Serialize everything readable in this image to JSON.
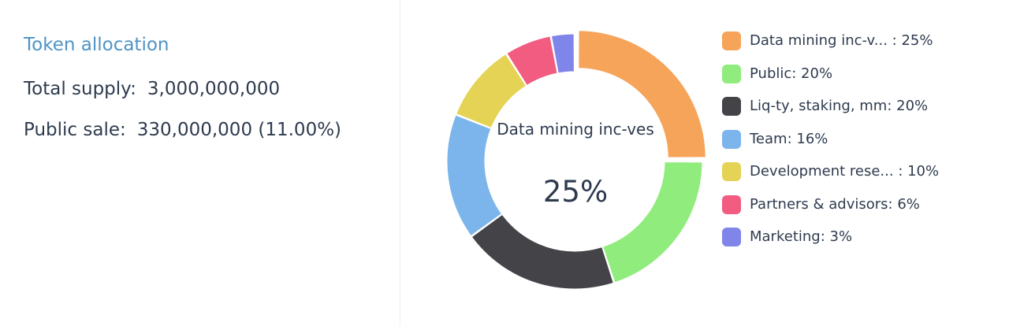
{
  "panel": {
    "title": "Token allocation",
    "total_supply_label": "Total supply:",
    "total_supply_value": "3,000,000,000",
    "public_sale_label": "Public sale:",
    "public_sale_value": "330,000,000 (11.00%)"
  },
  "chart_center": {
    "label": "Data mining inc-ves",
    "value": "25%"
  },
  "chart_data": {
    "type": "pie",
    "variant": "doughnut",
    "unit": "%",
    "highlighted_index": 0,
    "slices": [
      {
        "name": "Data mining inc-ves",
        "value": 25,
        "legend": "Data mining inc-v... : 25%",
        "color": "#f6a45a"
      },
      {
        "name": "Public",
        "value": 20,
        "legend": "Public: 20%",
        "color": "#90ec7d"
      },
      {
        "name": "Liq-ty, staking, mm",
        "value": 20,
        "legend": "Liq-ty, staking, mm: 20%",
        "color": "#434348"
      },
      {
        "name": "Team",
        "value": 16,
        "legend": "Team: 16%",
        "color": "#7cb5ec"
      },
      {
        "name": "Development rese...",
        "value": 10,
        "legend": "Development rese... : 10%",
        "color": "#e4d354"
      },
      {
        "name": "Partners & advisors",
        "value": 6,
        "legend": "Partners & advisors: 6%",
        "color": "#f15c80"
      },
      {
        "name": "Marketing",
        "value": 3,
        "legend": "Marketing: 3%",
        "color": "#8085e9"
      }
    ],
    "legend_position": "right"
  }
}
